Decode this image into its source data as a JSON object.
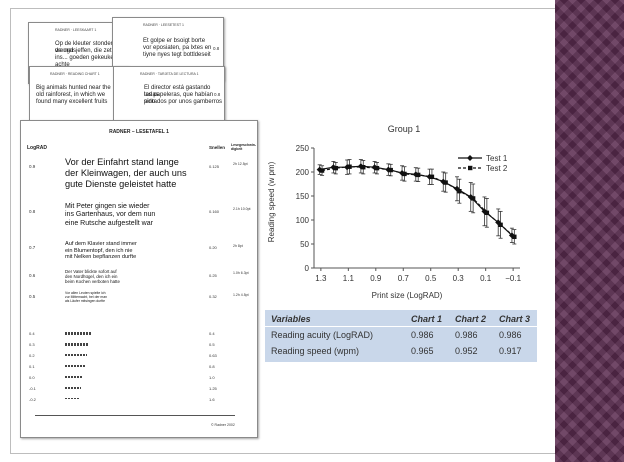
{
  "cards": {
    "back1": {
      "title": "RADNER · LEESKAART 1",
      "lines": [
        "Op de kleuter stonden vreugd",
        "de meisjeffen, die zet niet",
        "ins... goeden gekeuken achte"
      ],
      "score": "0.8"
    },
    "back2": {
      "title": "RADNER · LEESETEST 1",
      "lines": [
        "Et golpe er bsoigt borte",
        "vor eposiaten, pa lxtes en",
        "tiyne nyes tegt bottldeseit"
      ],
      "score": "0.8"
    },
    "mid1": {
      "title": "RADNER · READING CHART 1",
      "lines": [
        "Big animals hunted near the",
        "old rainforest, in which we",
        "found many excellent fruits"
      ],
      "score": "0.8"
    },
    "mid2": {
      "title": "RADNER · TARJETA DE LECTURA 1",
      "lines": [
        "El director está gastando todas",
        "las papeleras, que habían sido",
        "pintados por unos gamberros"
      ],
      "score": "0.8"
    },
    "front": {
      "title": "RADNER – LESETAFEL 1",
      "col_left": "LogRAD",
      "col_left_sub": "",
      "col_mid": "Snellen",
      "col_right": "Lesegeschwin-\ndigkeit",
      "sentences": [
        {
          "row": "0.9",
          "text": [
            "Vor der Einfahrt stand lange",
            "der Kleinwagen, der auch uns",
            "gute Dienste geleistet hatte"
          ],
          "snellen": "0.125",
          "speed": "2h 12.5pt"
        },
        {
          "row": "0.8",
          "text": [
            "Mit Peter gingen sie wieder",
            "ins Gartenhaus, vor dem nun",
            "eine Rutsche aufgestellt war"
          ],
          "snellen": "0.160",
          "speed": "2.1h 10.0pt"
        },
        {
          "row": "0.7",
          "text": [
            "Auf dem Klavier stand immer",
            "ein Blumentopf, den ich nie",
            "mit Nelken bepflanzen durfte"
          ],
          "snellen": "0.20",
          "speed": "2h 8pt"
        },
        {
          "row": "0.6",
          "text": [
            "Der Vater blickte sofort auf",
            "den Nordhügel, den ich ein",
            "beim Kochen verboten hatte"
          ],
          "snellen": "0.25",
          "speed": "1.0h 6.3pt"
        },
        {
          "row": "0.5",
          "text": [
            "Vor allen Leuten spielte ich",
            "zur Mittemacht, bei der man",
            "als Läufer mitsingen durfte"
          ],
          "snellen": "0.32",
          "speed": "1.2h 4.5pt"
        }
      ],
      "small_rows": [
        "0.4",
        "0.3",
        "0.2",
        "0.1",
        "0.0",
        "-0.1",
        "-0.2"
      ],
      "small_snellen": [
        "0.4",
        "0.5",
        "0.63",
        "0.8",
        "1.0",
        "1.25",
        "1.6"
      ],
      "footer": "© Radner 2002"
    }
  },
  "chart_data": {
    "type": "line",
    "title": "Group 1",
    "xlabel": "Print size (LogRAD)",
    "ylabel": "Reading speed (w pm)",
    "x": [
      1.3,
      1.2,
      1.1,
      1.0,
      0.9,
      0.8,
      0.7,
      0.6,
      0.5,
      0.4,
      0.3,
      0.2,
      0.1,
      0.0,
      -0.1
    ],
    "x_ticks": [
      "1.3",
      "1.1",
      "0.9",
      "0.7",
      "0.5",
      "0.3",
      "0.1",
      "−0.1"
    ],
    "x_tick_values": [
      1.3,
      1.1,
      0.9,
      0.7,
      0.5,
      0.3,
      0.1,
      -0.1
    ],
    "xlim": [
      1.35,
      -0.15
    ],
    "ylim": [
      0,
      250
    ],
    "y_ticks": [
      0,
      50,
      100,
      150,
      200,
      250
    ],
    "grid": false,
    "legend": "top-right",
    "series": [
      {
        "name": "Test 1",
        "style": "solid",
        "marker": "diamond",
        "values": [
          205,
          210,
          210,
          212,
          210,
          205,
          198,
          195,
          190,
          180,
          165,
          148,
          118,
          95,
          68
        ],
        "errors": [
          10,
          12,
          15,
          14,
          12,
          12,
          15,
          14,
          16,
          20,
          25,
          30,
          30,
          28,
          15
        ]
      },
      {
        "name": "Test 2",
        "style": "dashed",
        "marker": "square",
        "values": [
          203,
          208,
          211,
          210,
          208,
          204,
          196,
          194,
          190,
          178,
          160,
          145,
          115,
          90,
          65
        ],
        "errors": [
          10,
          12,
          15,
          14,
          12,
          12,
          15,
          14,
          16,
          20,
          25,
          30,
          30,
          28,
          15
        ]
      }
    ],
    "colors": {
      "line": "#111111",
      "axis": "#555555"
    }
  },
  "table": {
    "headers": [
      "Variables",
      "Chart 1",
      "Chart 2",
      "Chart 3"
    ],
    "rows": [
      [
        "Reading acuity (LogRAD)",
        "0.986",
        "0.986",
        "0.986"
      ],
      [
        "Reading speed (wpm)",
        "0.965",
        "0.952",
        "0.917"
      ]
    ],
    "bg_color": "#c9d7ea"
  }
}
